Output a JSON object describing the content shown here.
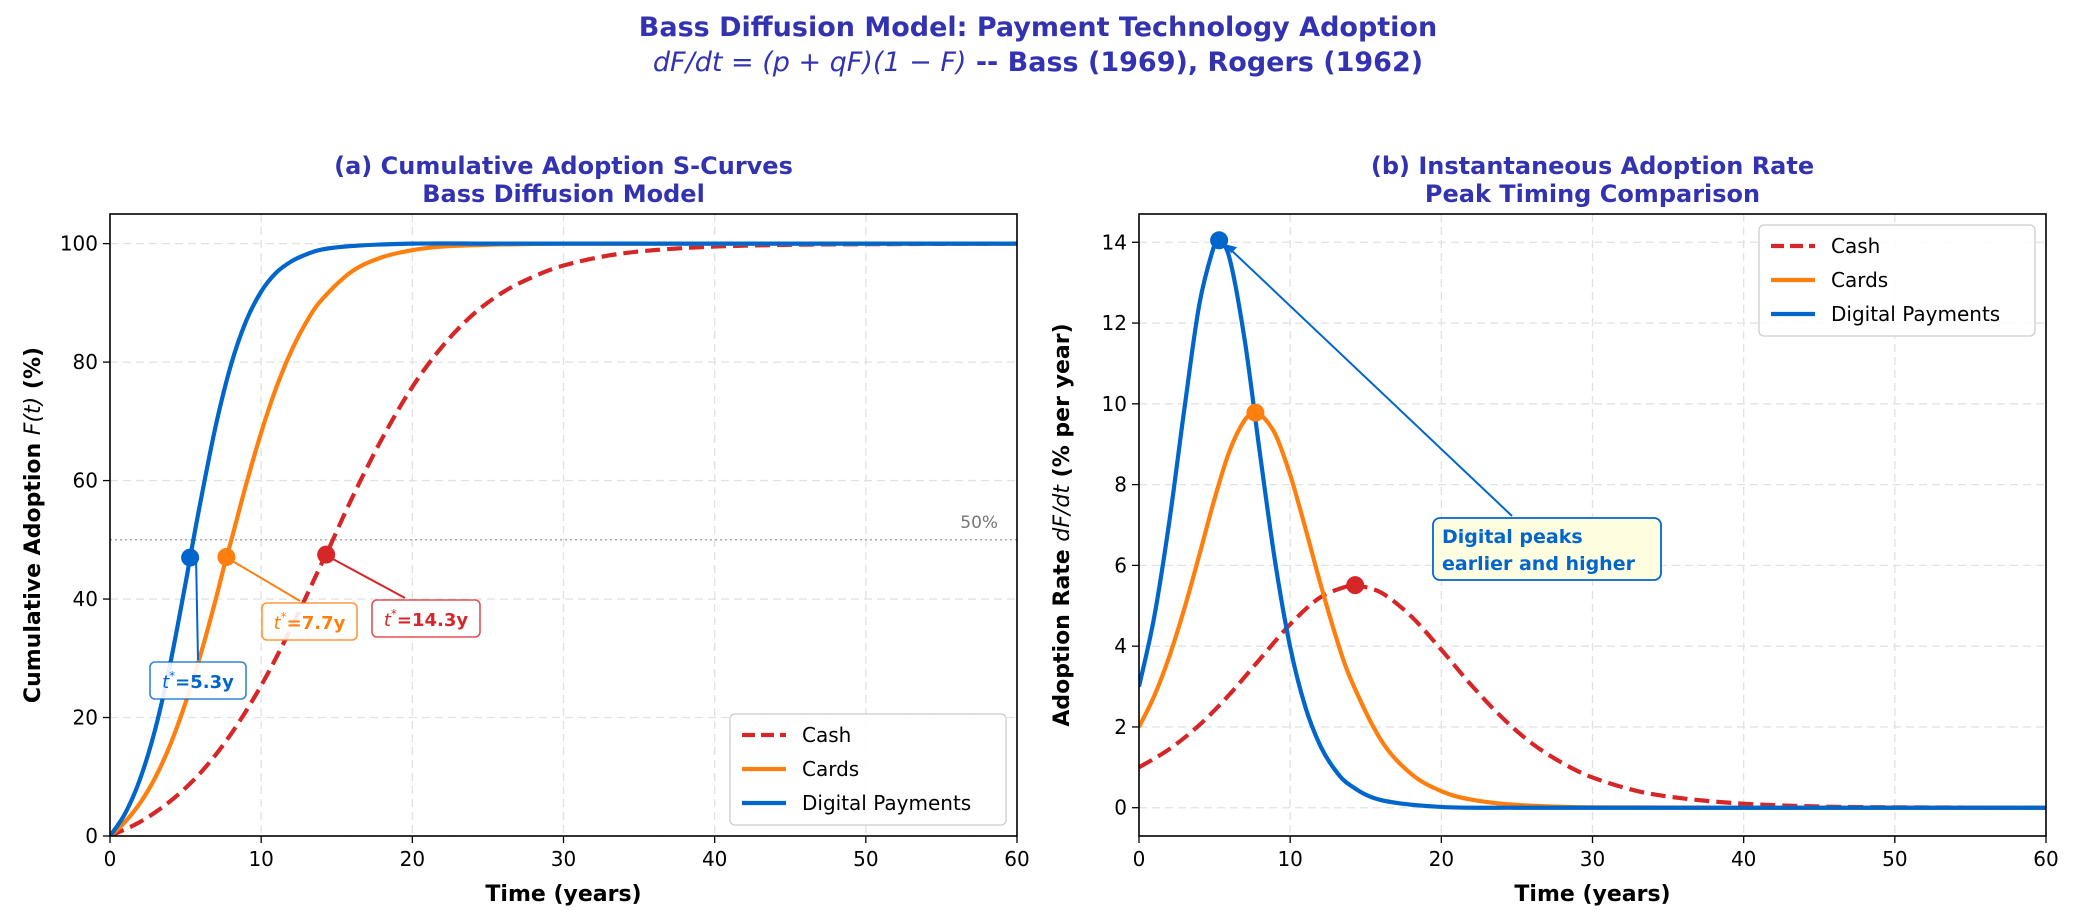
{
  "figure": {
    "title": "Bass Diffusion Model: Payment Technology Adoption",
    "subtitle_math": "dF/dt = (p + qF)(1 − F)",
    "subtitle_text": " -- Bass (1969), Rogers (1962)",
    "title_color": "#3333b2"
  },
  "chart_data": [
    {
      "type": "line",
      "title_line1": "(a) Cumulative Adoption S-Curves",
      "title_line2": "Bass Diffusion Model",
      "xlabel": "Time (years)",
      "ylabel": {
        "pre": "Cumulative Adoption ",
        "math": "F(t)",
        "post": " (%)"
      },
      "xlim": [
        0,
        60
      ],
      "ylim": [
        0,
        105
      ],
      "xticks": [
        0,
        10,
        20,
        30,
        40,
        50,
        60
      ],
      "yticks": [
        0,
        20,
        40,
        60,
        80,
        100
      ],
      "grid": true,
      "legend_position": "lower-right",
      "reference_line": {
        "y": 50,
        "label": "50%"
      },
      "series": [
        {
          "name": "Cash",
          "color": "#d62728",
          "style": "dashed",
          "x": [
            0,
            2,
            4,
            6,
            8,
            10,
            12,
            14,
            14.3,
            16,
            18,
            20,
            22,
            24,
            26,
            28,
            30,
            33,
            36,
            40,
            45,
            50,
            60
          ],
          "y": [
            0,
            2.4,
            5.9,
            10.7,
            17.2,
            25.4,
            35.2,
            46.0,
            47.5,
            57.0,
            67.1,
            75.8,
            82.7,
            88.0,
            91.8,
            94.4,
            96.3,
            98.0,
            98.9,
            99.5,
            99.8,
            99.9,
            100
          ]
        },
        {
          "name": "Cards",
          "color": "#ff7f0e",
          "style": "solid",
          "x": [
            0,
            1,
            2,
            3,
            4,
            5,
            6,
            7,
            7.7,
            8,
            9,
            10,
            11,
            12,
            13,
            14,
            16,
            18,
            20,
            22,
            25,
            30,
            40,
            60
          ],
          "y": [
            0,
            2.4,
            5.6,
            9.9,
            15.5,
            22.5,
            30.7,
            40.0,
            47.1,
            49.7,
            59.3,
            68.1,
            75.7,
            81.9,
            86.8,
            90.5,
            95.3,
            97.7,
            98.9,
            99.5,
            99.8,
            100,
            100,
            100
          ]
        },
        {
          "name": "Digital Payments",
          "color": "#0066cc",
          "style": "solid",
          "x": [
            0,
            1,
            2,
            3,
            4,
            5,
            5.3,
            6,
            7,
            8,
            9,
            10,
            11,
            12,
            13,
            14,
            16,
            20,
            25,
            30,
            40,
            60
          ],
          "y": [
            0,
            3.8,
            9.7,
            18.1,
            29.3,
            42.7,
            47.0,
            56.6,
            69.3,
            79.5,
            86.9,
            91.9,
            95.1,
            97.0,
            98.2,
            99.0,
            99.6,
            100,
            100,
            100,
            100,
            100
          ]
        }
      ],
      "annotations": [
        {
          "series": "Cards",
          "x": 7.7,
          "y": 47.1,
          "math": "t",
          "sup": "*",
          "text": "=7.7y"
        },
        {
          "series": "Digital Payments",
          "x": 5.3,
          "y": 47.0,
          "math": "t",
          "sup": "*",
          "text": "=5.3y"
        },
        {
          "series": "Cash",
          "x": 14.3,
          "y": 47.5,
          "math": "t",
          "sup": "*",
          "text": "=14.3y"
        }
      ]
    },
    {
      "type": "line",
      "title_line1": "(b) Instantaneous Adoption Rate",
      "title_line2": "Peak Timing Comparison",
      "xlabel": "Time (years)",
      "ylabel": {
        "pre": "Adoption Rate ",
        "math": "dF/dt",
        "post": " (% per year)"
      },
      "xlim": [
        0,
        60
      ],
      "ylim": [
        -0.7,
        14.7
      ],
      "xticks": [
        0,
        10,
        20,
        30,
        40,
        50,
        60
      ],
      "yticks": [
        0,
        2,
        4,
        6,
        8,
        10,
        12,
        14
      ],
      "grid": true,
      "legend_position": "upper-right",
      "series": [
        {
          "name": "Cash",
          "color": "#d62728",
          "style": "dashed",
          "x": [
            0,
            2,
            4,
            6,
            8,
            10,
            12,
            14,
            14.3,
            16,
            18,
            20,
            22,
            24,
            26,
            28,
            30,
            33,
            36,
            40,
            45,
            50,
            60
          ],
          "y": [
            1.0,
            1.45,
            2.05,
            2.81,
            3.68,
            4.54,
            5.21,
            5.51,
            5.51,
            5.33,
            4.74,
            3.91,
            3.03,
            2.24,
            1.59,
            1.11,
            0.75,
            0.41,
            0.23,
            0.1,
            0.03,
            0.01,
            0
          ]
        },
        {
          "name": "Cards",
          "color": "#ff7f0e",
          "style": "solid",
          "x": [
            0,
            1,
            2,
            3,
            4,
            5,
            6,
            7,
            7.7,
            8,
            9,
            10,
            11,
            12,
            13,
            14,
            16,
            18,
            20,
            22,
            25,
            30,
            40,
            60
          ],
          "y": [
            2.0,
            2.76,
            3.74,
            4.93,
            6.27,
            7.65,
            8.84,
            9.6,
            9.78,
            9.76,
            9.26,
            8.24,
            6.93,
            5.55,
            4.27,
            3.19,
            1.68,
            0.84,
            0.41,
            0.2,
            0.07,
            0.01,
            0,
            0
          ]
        },
        {
          "name": "Digital Payments",
          "color": "#0066cc",
          "style": "solid",
          "x": [
            0,
            1,
            2,
            3,
            4,
            5,
            5.3,
            6,
            7,
            8,
            9,
            10,
            11,
            12,
            13,
            14,
            16,
            20,
            25,
            30,
            40,
            60
          ],
          "y": [
            3.0,
            4.71,
            7.07,
            9.87,
            12.48,
            13.95,
            14.05,
            13.59,
            11.56,
            8.77,
            6.1,
            3.98,
            2.5,
            1.53,
            0.92,
            0.55,
            0.19,
            0.02,
            0,
            0,
            0,
            0
          ]
        }
      ],
      "peaks": [
        {
          "series": "Cash",
          "x": 14.3,
          "y": 5.51
        },
        {
          "series": "Cards",
          "x": 7.7,
          "y": 9.78
        },
        {
          "series": "Digital Payments",
          "x": 5.3,
          "y": 14.05
        }
      ],
      "callout": {
        "line1": "Digital peaks",
        "line2": "earlier and higher",
        "x": 5.3,
        "y": 14.05,
        "color": "#0066cc",
        "background": "#fffde0"
      }
    }
  ]
}
